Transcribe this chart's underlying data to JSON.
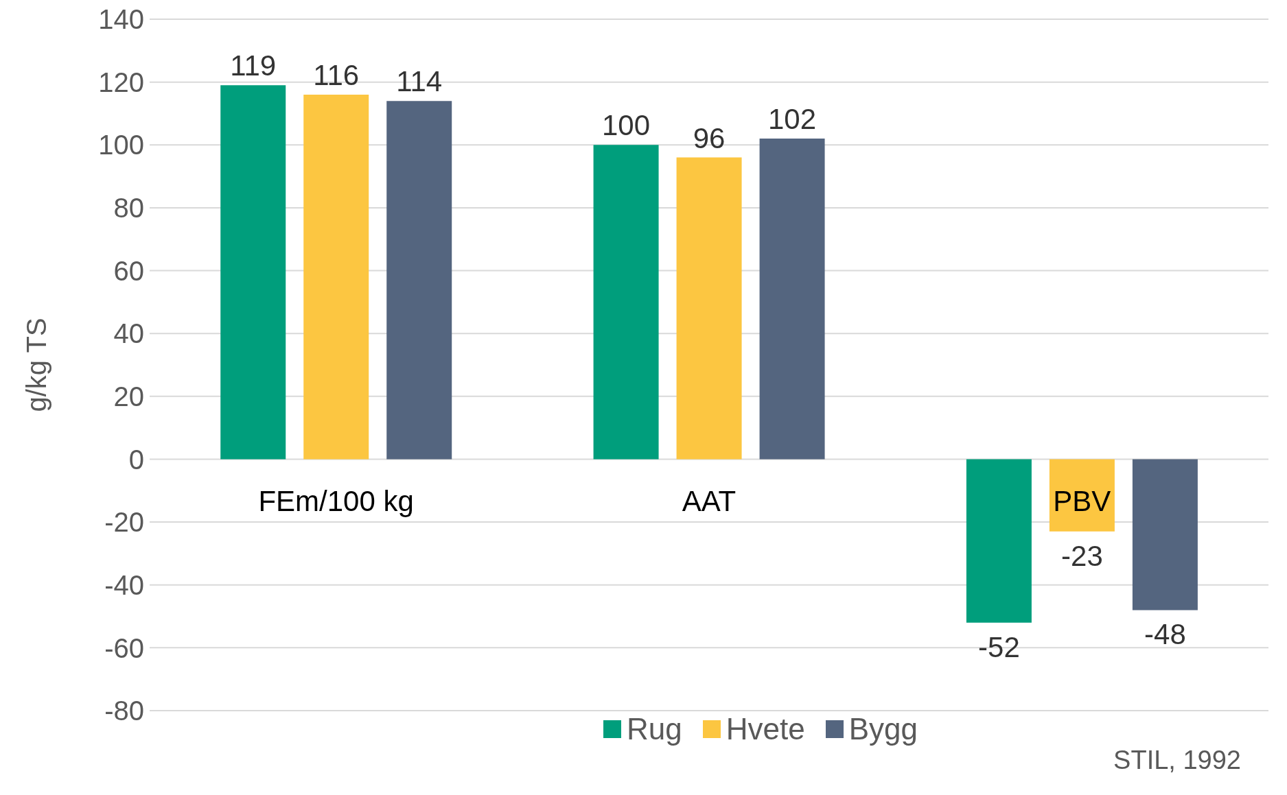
{
  "chart_data": {
    "type": "bar",
    "ylabel": "g/kg TS",
    "categories": [
      "FEm/100 kg",
      "AAT",
      "PBV"
    ],
    "series": [
      {
        "name": "Rug",
        "color": "#009e7c",
        "values": [
          119,
          100,
          -52
        ]
      },
      {
        "name": "Hvete",
        "color": "#fcc641",
        "values": [
          116,
          96,
          -23
        ]
      },
      {
        "name": "Bygg",
        "color": "#54657f",
        "values": [
          114,
          102,
          -48
        ]
      }
    ],
    "ylim": [
      -80,
      140
    ],
    "yticks": [
      -80,
      -60,
      -40,
      -20,
      0,
      20,
      40,
      60,
      80,
      100,
      120,
      140
    ],
    "grid": "y",
    "legend": "bottom",
    "data_labels": true,
    "annotations": [
      "STIL, 1992"
    ]
  }
}
